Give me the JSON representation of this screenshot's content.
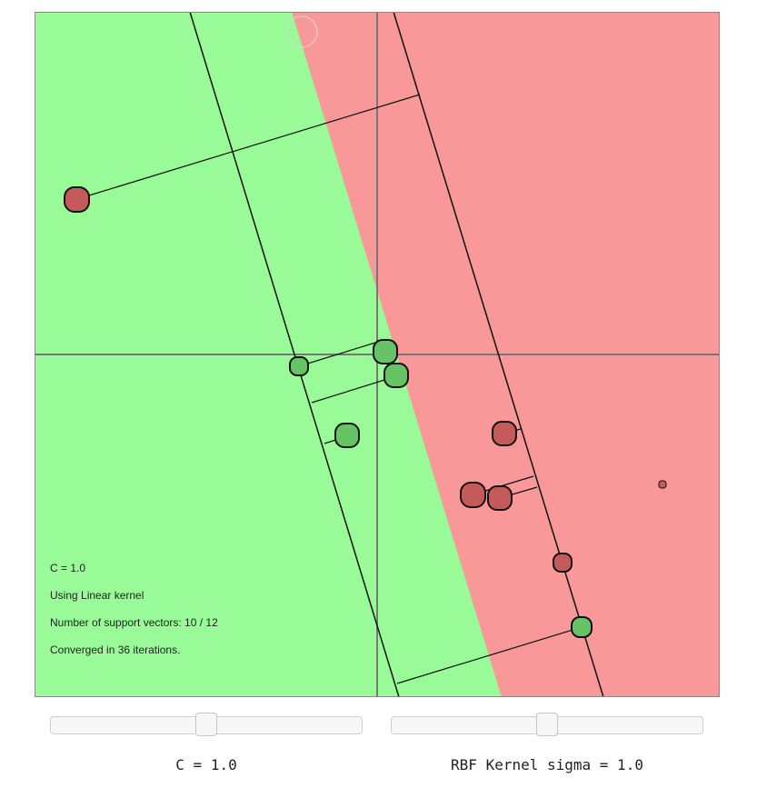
{
  "colors": {
    "green_region": "#98fb98",
    "red_region": "#f99898",
    "axis": "#777777",
    "frame": "#8a8a8a",
    "positive_point": "#66c466",
    "negative_point": "#c45a5a"
  },
  "info": {
    "c_text": "C = 1.0",
    "kernel_text": "Using Linear kernel",
    "support_text": "Number of support vectors: 10 / 12",
    "converged_text": "Converged in 36 iterations."
  },
  "controls": {
    "c_slider": {
      "value": 0.5
    },
    "sigma_slider": {
      "value": 0.5
    },
    "c_label": "C = 1.0",
    "sigma_label": "RBF Kernel sigma = 1.0"
  }
}
